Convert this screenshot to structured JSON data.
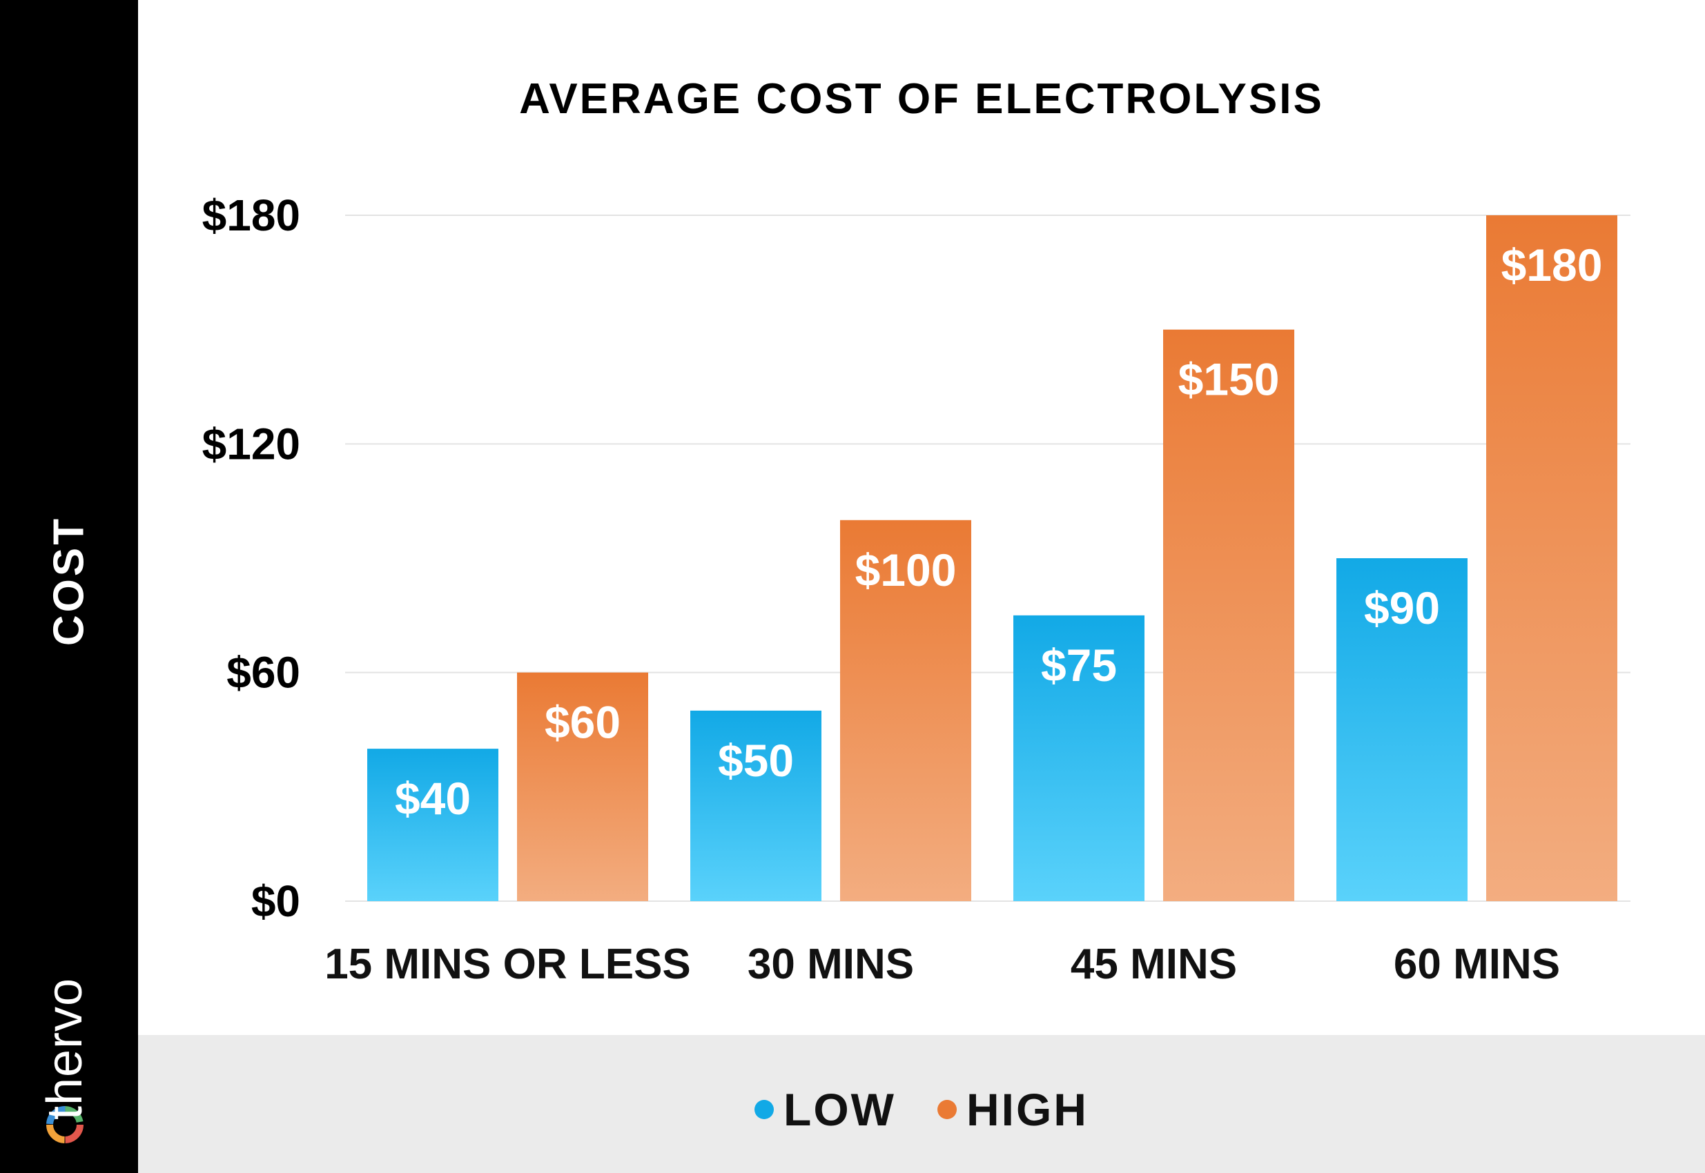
{
  "colors": {
    "low": "#12a9e6",
    "high": "#ea7a34",
    "side_panel": "#000000",
    "legend_band": "#ebebeb"
  },
  "side": {
    "ylabel": "COST",
    "brand": "thervo",
    "brand_icon": "thervo-logo-icon"
  },
  "chart_data": {
    "type": "bar",
    "title": "AVERAGE COST OF ELECTROLYSIS",
    "xlabel": "",
    "ylabel": "COST",
    "categories": [
      "15 MINS OR LESS",
      "30 MINS",
      "45 MINS",
      "60 MINS"
    ],
    "series": [
      {
        "name": "LOW",
        "values": [
          40,
          50,
          75,
          90
        ],
        "labels": [
          "$40",
          "$50",
          "$75",
          "$90"
        ]
      },
      {
        "name": "HIGH",
        "values": [
          60,
          100,
          150,
          180
        ],
        "labels": [
          "$60",
          "$100",
          "$150",
          "$180"
        ]
      }
    ],
    "ylim": [
      0,
      180
    ],
    "yticks": [
      0,
      60,
      120,
      180
    ],
    "ytick_labels": [
      "$0",
      "$60",
      "$120",
      "$180"
    ],
    "grid": true,
    "legend_position": "bottom"
  }
}
